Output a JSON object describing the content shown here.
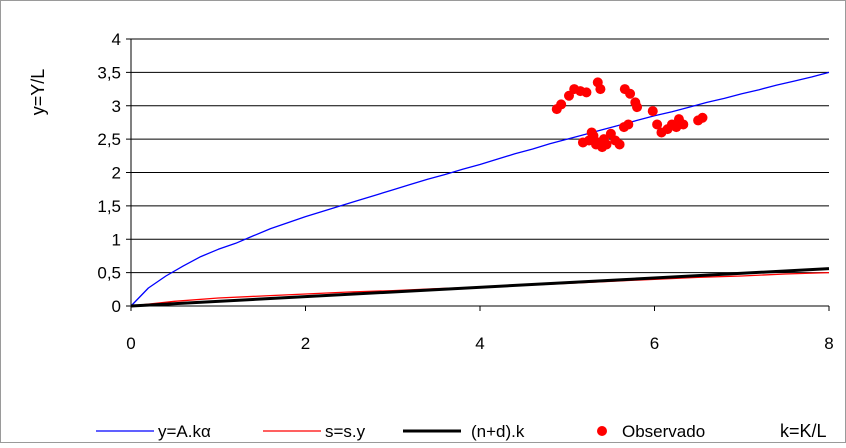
{
  "chart_data": {
    "type": "line",
    "title": "",
    "xlabel": "k=K/L",
    "ylabel": "y=Y/L",
    "xlim": [
      0,
      8
    ],
    "ylim": [
      0,
      4
    ],
    "x_ticks": [
      "0",
      "2",
      "4",
      "6",
      "8"
    ],
    "y_ticks": [
      "0",
      "0,5",
      "1",
      "1,5",
      "2",
      "2,5",
      "3",
      "3,5",
      "4"
    ],
    "grid": "horizontal",
    "legend_position": "bottom",
    "series": [
      {
        "name": "y=A.kα",
        "kind": "line",
        "color": "#0000ff",
        "x": [
          0,
          0.2,
          0.4,
          0.6,
          0.8,
          1.0,
          1.2,
          1.4,
          1.6,
          1.8,
          2.0,
          2.2,
          2.4,
          2.6,
          2.8,
          3.0,
          3.2,
          3.4,
          3.6,
          3.8,
          4.0,
          4.2,
          4.4,
          4.6,
          4.8,
          5.0,
          5.2,
          5.4,
          5.6,
          5.8,
          6.0,
          6.2,
          6.4,
          6.6,
          6.8,
          7.0,
          7.2,
          7.4,
          7.6,
          7.8,
          8.0
        ],
        "y": [
          0,
          0.27,
          0.45,
          0.6,
          0.74,
          0.85,
          0.94,
          1.05,
          1.16,
          1.25,
          1.34,
          1.42,
          1.5,
          1.58,
          1.66,
          1.74,
          1.82,
          1.9,
          1.97,
          2.05,
          2.12,
          2.2,
          2.28,
          2.35,
          2.43,
          2.5,
          2.57,
          2.64,
          2.71,
          2.78,
          2.85,
          2.91,
          2.98,
          3.05,
          3.11,
          3.18,
          3.24,
          3.31,
          3.37,
          3.43,
          3.5
        ]
      },
      {
        "name": "s=s.y",
        "kind": "line",
        "color": "#ff0000",
        "x": [
          0,
          0.5,
          1.0,
          1.5,
          2.0,
          2.5,
          3.0,
          3.5,
          4.0,
          4.5,
          5.0,
          5.5,
          6.0,
          6.5,
          7.0,
          7.5,
          8.0
        ],
        "y": [
          0,
          0.07,
          0.12,
          0.15,
          0.18,
          0.21,
          0.23,
          0.26,
          0.28,
          0.31,
          0.34,
          0.37,
          0.4,
          0.43,
          0.45,
          0.48,
          0.5
        ]
      },
      {
        "name": "(n+d).k",
        "kind": "line",
        "color": "#000000",
        "x": [
          0,
          8
        ],
        "y": [
          0,
          0.56
        ]
      },
      {
        "name": "Observado",
        "kind": "scatter",
        "color": "#ff0000",
        "x": [
          4.88,
          4.93,
          5.02,
          5.08,
          5.15,
          5.22,
          5.18,
          5.35,
          5.38,
          5.42,
          5.3,
          5.25,
          5.28,
          5.33,
          5.36,
          5.4,
          5.45,
          5.5,
          5.55,
          5.6,
          5.66,
          5.72,
          5.78,
          5.8,
          5.65,
          5.7,
          5.98,
          6.03,
          6.08,
          6.15,
          6.2,
          6.25,
          6.28,
          6.33,
          6.5,
          6.55
        ],
        "y": [
          2.95,
          3.02,
          3.15,
          3.25,
          3.22,
          3.2,
          2.45,
          3.35,
          3.25,
          2.5,
          2.55,
          2.48,
          2.6,
          2.42,
          2.45,
          2.38,
          2.42,
          2.58,
          2.48,
          2.42,
          3.25,
          3.18,
          3.05,
          2.98,
          2.68,
          2.72,
          2.92,
          2.72,
          2.6,
          2.65,
          2.72,
          2.68,
          2.8,
          2.72,
          2.78,
          2.82
        ]
      }
    ]
  }
}
